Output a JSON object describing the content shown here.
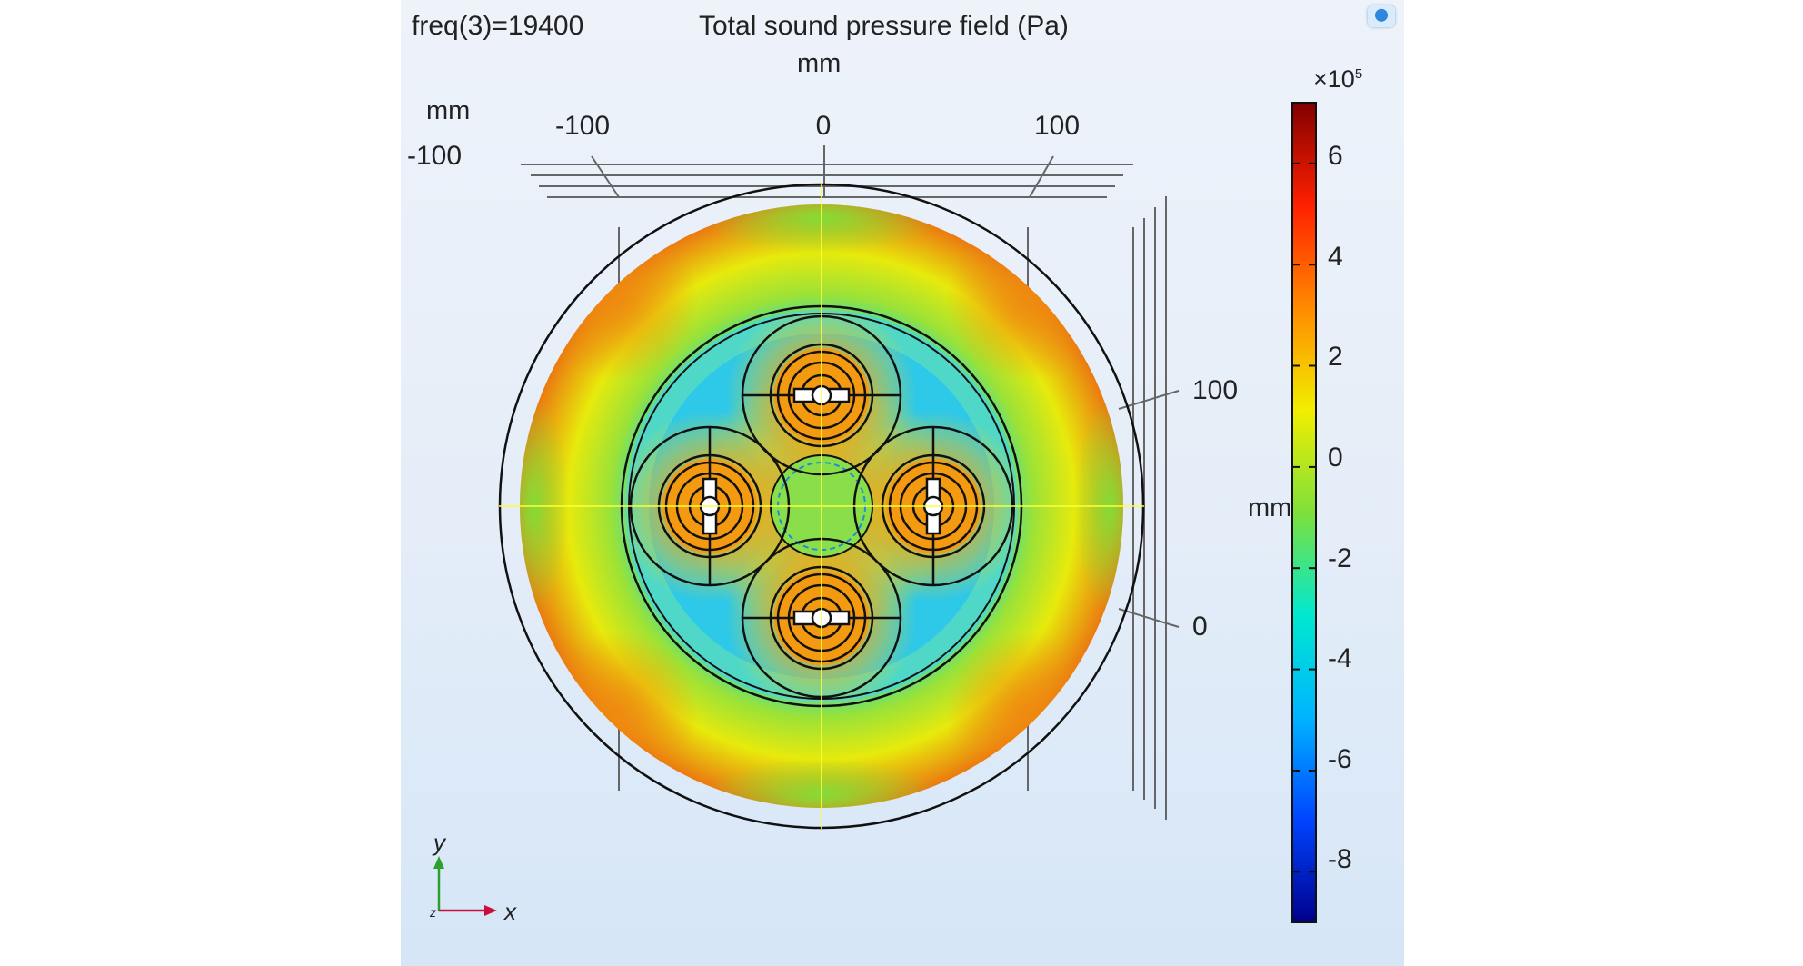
{
  "plot": {
    "freq_label": "freq(3)=19400",
    "title": "Total sound pressure field (Pa)",
    "unit_top": "mm",
    "unit_left": "mm",
    "unit_right": "mm",
    "x_ticks": [
      "-100",
      "0",
      "100"
    ],
    "y_tick_top": "-100",
    "y_ticks_right": [
      "100",
      "0"
    ]
  },
  "colorbar": {
    "multiplier": "×10",
    "exponent": "5",
    "ticks": [
      "6",
      "4",
      "2",
      "0",
      "-2",
      "-4",
      "-6",
      "-8"
    ],
    "range": [
      -9,
      7.2
    ],
    "colors": [
      "#00008c",
      "#0044ff",
      "#00b4ff",
      "#00e8d0",
      "#7ee03a",
      "#f2ee00",
      "#ff8a00",
      "#ff2000",
      "#820000"
    ]
  },
  "triad": {
    "y_label": "y",
    "x_label": "x",
    "z_label": "z"
  },
  "colors": {
    "panel_background": "#e4edf8",
    "axis_x": "#c8103c",
    "axis_y": "#2ca02c",
    "geometry_edges": "#111111"
  }
}
